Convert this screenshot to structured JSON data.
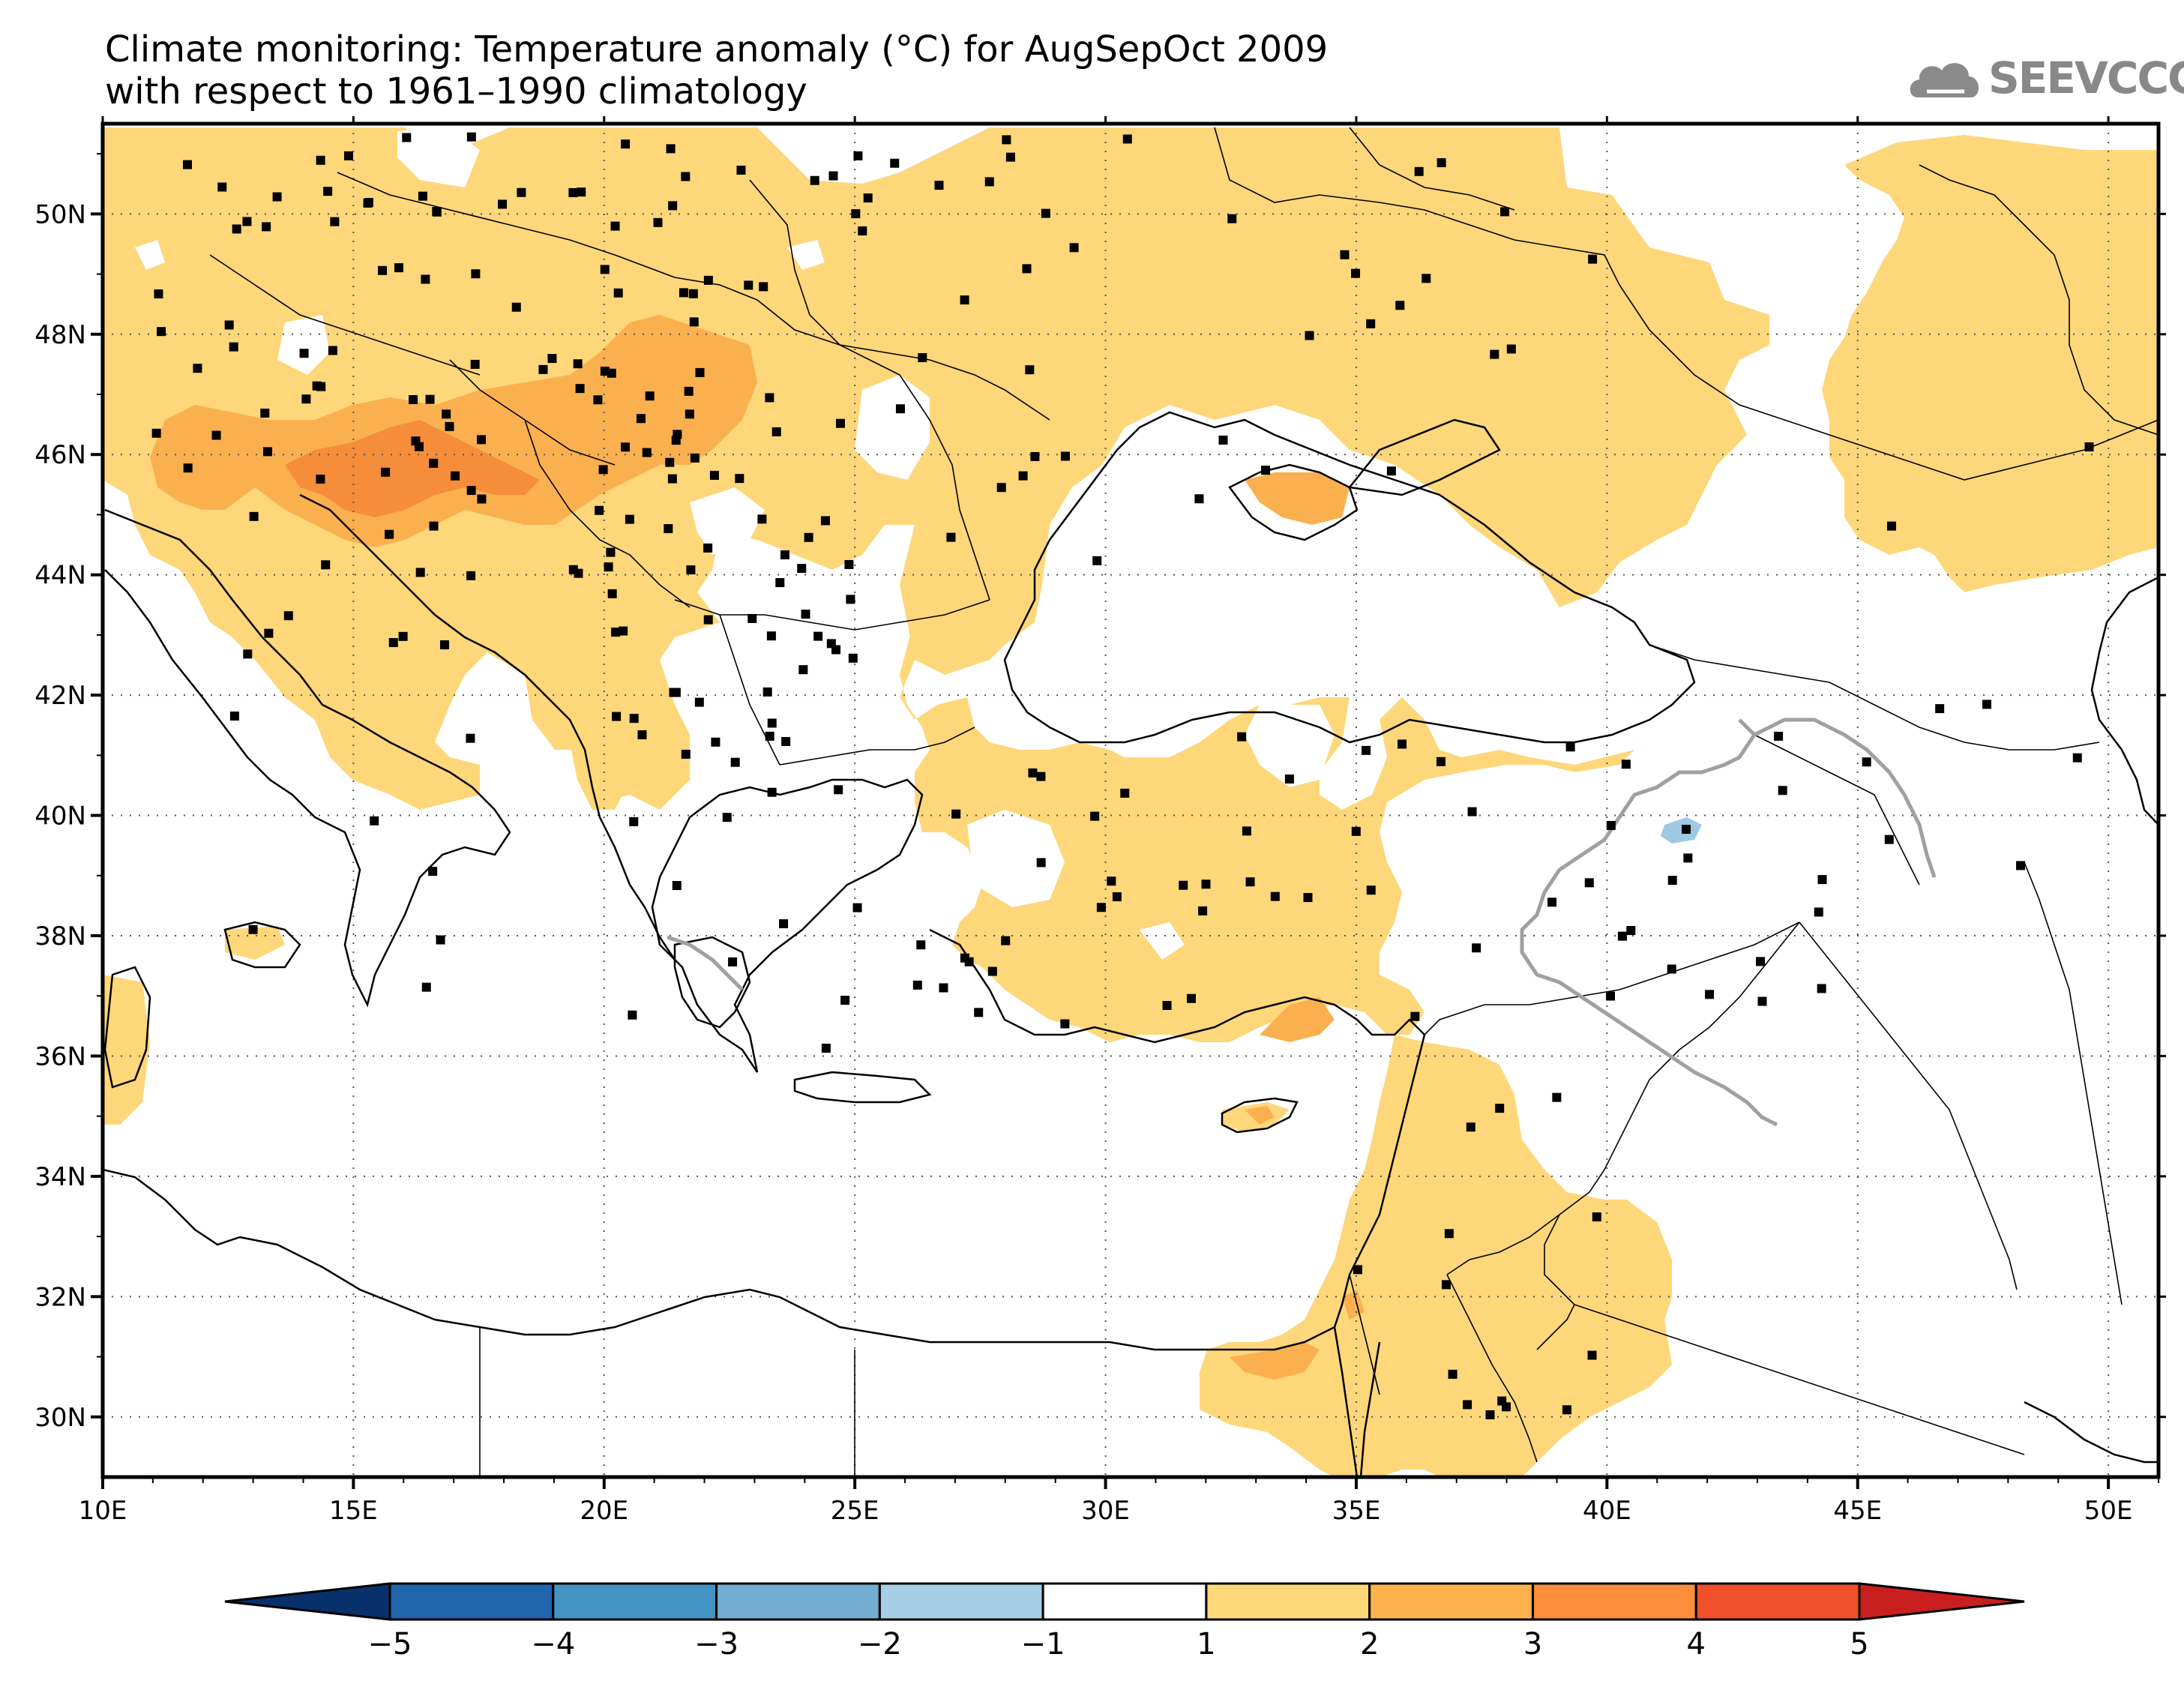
{
  "title": {
    "line1": "Climate monitoring: Temperature anomaly (°C) for AugSepOct 2009",
    "line2": "with respect to 1961–1990 climatology"
  },
  "logo": {
    "text": "SEEVCCC",
    "icon": "cloud-icon"
  },
  "map": {
    "lon_range": [
      10,
      51
    ],
    "lat_range": [
      29,
      51.5
    ],
    "lon_ticks": [
      "10E",
      "15E",
      "20E",
      "25E",
      "30E",
      "35E",
      "40E",
      "45E",
      "50E"
    ],
    "lat_ticks": [
      "30N",
      "32N",
      "34N",
      "36N",
      "38N",
      "40N",
      "42N",
      "44N",
      "46N",
      "48N",
      "50N"
    ],
    "grid": true
  },
  "colorbar": {
    "labels": [
      "−5",
      "−4",
      "−3",
      "−2",
      "−1",
      "1",
      "2",
      "3",
      "4",
      "5"
    ],
    "colors": [
      "#08306b",
      "#2166ac",
      "#4393c3",
      "#74add1",
      "#a6cfe6",
      "#ffffff",
      "#fdd77a",
      "#fdb24e",
      "#fc8d3b",
      "#f0502a",
      "#c81e1e"
    ]
  },
  "anomaly_colors": {
    "plus1": "#fdd77a",
    "plus2": "#fbb04f",
    "plus3": "#f58d3a",
    "minus1": "#9ec9e2"
  }
}
